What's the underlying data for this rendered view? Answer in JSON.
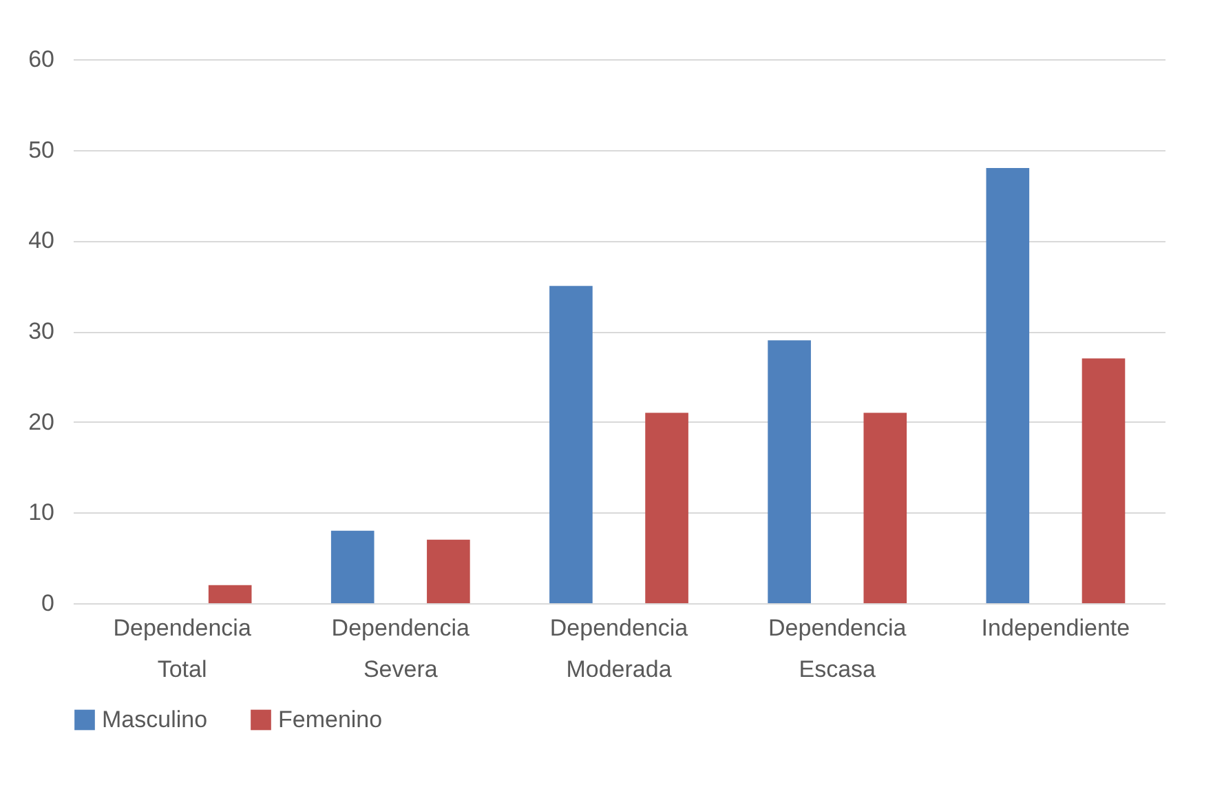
{
  "chart_data": {
    "type": "bar",
    "categories": [
      "Dependencia Total",
      "Dependencia Severa",
      "Dependencia Moderada",
      "Dependencia Escasa",
      "Independiente"
    ],
    "series": [
      {
        "name": "Masculino",
        "color": "#4f81bd",
        "values": [
          0,
          8,
          35,
          29,
          48
        ]
      },
      {
        "name": "Femenino",
        "color": "#c0504d",
        "values": [
          2,
          7,
          21,
          21,
          27
        ]
      }
    ],
    "ylim": [
      0,
      60
    ],
    "yticks": [
      0,
      10,
      20,
      30,
      40,
      50,
      60
    ],
    "grid": "y",
    "legend": "bottom"
  }
}
